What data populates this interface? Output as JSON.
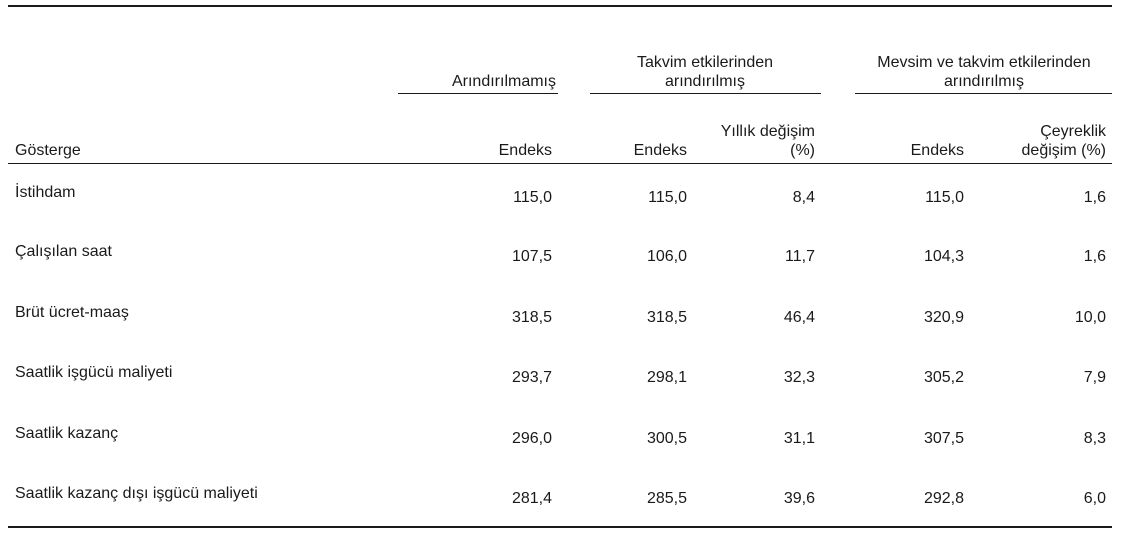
{
  "table": {
    "group_headers": [
      "Arındırılmamış",
      "Takvim etkilerinden arındırılmış",
      "Mevsim ve takvim etkilerinden arındırılmış"
    ],
    "columns": [
      "Gösterge",
      "Endeks",
      "Endeks",
      "Yıllık değişim (%)",
      "Endeks",
      "Çeyreklik değişim (%)"
    ],
    "rows": [
      [
        "İstihdam",
        "115,0",
        "115,0",
        "8,4",
        "115,0",
        "1,6"
      ],
      [
        "Çalışılan saat",
        "107,5",
        "106,0",
        "11,7",
        "104,3",
        "1,6"
      ],
      [
        "Brüt ücret-maaş",
        "318,5",
        "318,5",
        "46,4",
        "320,9",
        "10,0"
      ],
      [
        "Saatlik işgücü maliyeti",
        "293,7",
        "298,1",
        "32,3",
        "305,2",
        "7,9"
      ],
      [
        "Saatlik kazanç",
        "296,0",
        "300,5",
        "31,1",
        "307,5",
        "8,3"
      ],
      [
        "Saatlik kazanç dışı işgücü maliyeti",
        "281,4",
        "285,5",
        "39,6",
        "292,8",
        "6,0"
      ]
    ]
  }
}
